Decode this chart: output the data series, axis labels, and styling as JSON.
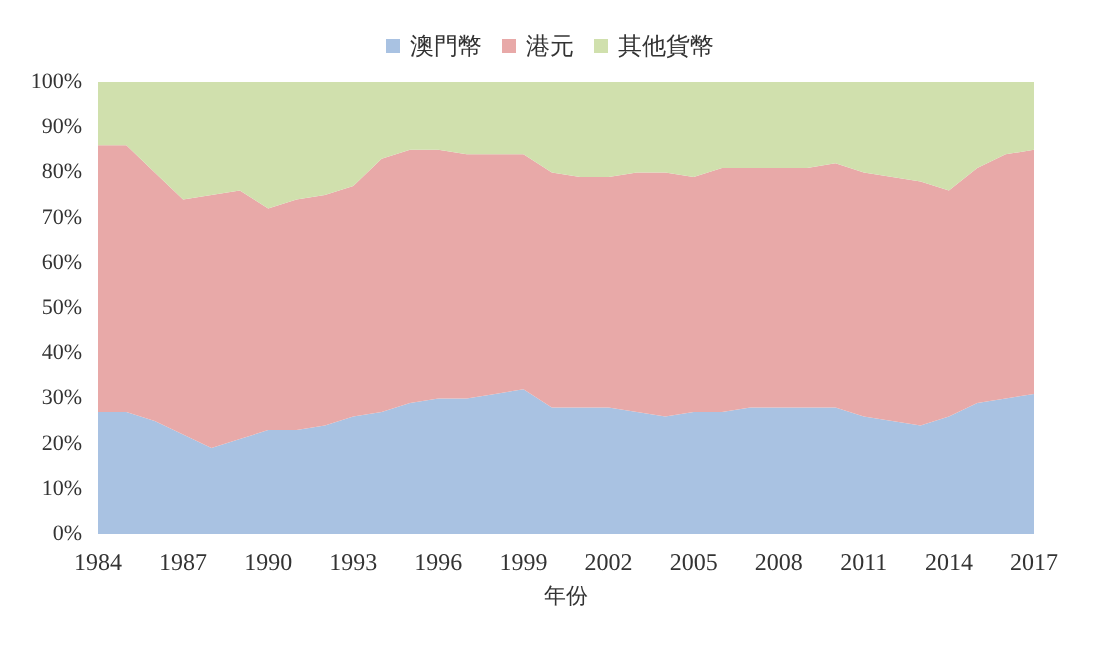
{
  "chart_data": {
    "type": "area",
    "stacked": true,
    "xlabel": "年份",
    "categories": [
      "1984",
      null,
      null,
      "1987",
      null,
      null,
      "1990",
      null,
      null,
      "1993",
      null,
      null,
      "1996",
      null,
      null,
      "1999",
      null,
      null,
      "2002",
      null,
      null,
      "2005",
      null,
      null,
      "2008",
      null,
      null,
      "2011",
      null,
      null,
      "2014",
      null,
      null,
      "2017"
    ],
    "series": [
      {
        "name": "澳門幣",
        "color": "#a9c2e2",
        "values": [
          27,
          27,
          25,
          22,
          19,
          21,
          23,
          23,
          24,
          26,
          27,
          29,
          30,
          30,
          31,
          32,
          28,
          28,
          28,
          27,
          26,
          27,
          27,
          28,
          28,
          28,
          28,
          26,
          25,
          24,
          26,
          29,
          30,
          31
        ]
      },
      {
        "name": "港元",
        "color": "#e8a9a8",
        "values": [
          59,
          59,
          55,
          52,
          56,
          55,
          49,
          51,
          51,
          51,
          56,
          56,
          55,
          54,
          53,
          52,
          52,
          51,
          51,
          53,
          54,
          52,
          54,
          53,
          53,
          53,
          54,
          54,
          54,
          54,
          50,
          52,
          54,
          54
        ]
      },
      {
        "name": "其他貨幣",
        "color": "#d0e0ad",
        "values": [
          14,
          14,
          20,
          26,
          25,
          24,
          28,
          26,
          25,
          23,
          17,
          15,
          15,
          16,
          16,
          16,
          20,
          21,
          21,
          20,
          20,
          21,
          19,
          19,
          19,
          19,
          18,
          20,
          21,
          22,
          24,
          19,
          16,
          15
        ]
      }
    ],
    "ylim": [
      0,
      100
    ],
    "yticks": [
      {
        "value": 0,
        "label": "0%"
      },
      {
        "value": 10,
        "label": "10%"
      },
      {
        "value": 20,
        "label": "20%"
      },
      {
        "value": 30,
        "label": "30%"
      },
      {
        "value": 40,
        "label": "40%"
      },
      {
        "value": 50,
        "label": "50%"
      },
      {
        "value": 60,
        "label": "60%"
      },
      {
        "value": 70,
        "label": "70%"
      },
      {
        "value": 80,
        "label": "80%"
      },
      {
        "value": 90,
        "label": "90%"
      },
      {
        "value": 100,
        "label": "100%"
      }
    ],
    "grid": false,
    "legend": "top"
  }
}
